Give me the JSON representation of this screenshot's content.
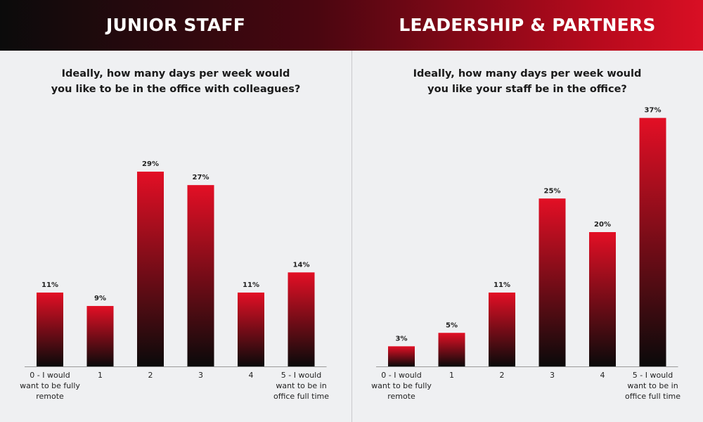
{
  "header": {
    "left_title": "JUNIOR STAFF",
    "right_title": "LEADERSHIP & PARTNERS"
  },
  "colors": {
    "bar_top": "#e30f25",
    "bar_bottom": "#0a0a0a",
    "header_left": "#0b0b0b",
    "header_right": "#d90f24",
    "background": "#eff0f2"
  },
  "chart_data": [
    {
      "type": "bar",
      "title": "Ideally, how many days per week would you like to be in the office with colleagues?",
      "title_lines": [
        "Ideally, how many days per week would",
        "you like to be in the office with colleagues?"
      ],
      "categories": [
        "0 - I would want to be fully remote",
        "1",
        "2",
        "3",
        "4",
        "5 - I would want to be in office full time"
      ],
      "category_lines": [
        [
          "0 - I would",
          "want to be fully",
          "remote"
        ],
        [
          "1"
        ],
        [
          "2"
        ],
        [
          "3"
        ],
        [
          "4"
        ],
        [
          "5 - I would",
          "want to be in",
          "office full time"
        ]
      ],
      "values": [
        11,
        9,
        29,
        27,
        11,
        14
      ],
      "value_labels": [
        "11%",
        "9%",
        "29%",
        "27%",
        "11%",
        "14%"
      ],
      "unit": "%",
      "xlabel": "",
      "ylabel": "",
      "grid": false
    },
    {
      "type": "bar",
      "title": "Ideally, how many days per week would you like your staff be in the office?",
      "title_lines": [
        "Ideally, how many days per week would",
        "you like your staff be in the office?"
      ],
      "categories": [
        "0 - I would want to be fully remote",
        "1",
        "2",
        "3",
        "4",
        "5 - I would want to be in office full time"
      ],
      "category_lines": [
        [
          "0 - I would",
          "want to be fully",
          "remote"
        ],
        [
          "1"
        ],
        [
          "2"
        ],
        [
          "3"
        ],
        [
          "4"
        ],
        [
          "5 - I would",
          "want to be in",
          "office full time"
        ]
      ],
      "values": [
        3,
        5,
        11,
        25,
        20,
        37
      ],
      "value_labels": [
        "3%",
        "5%",
        "11%",
        "25%",
        "20%",
        "37%"
      ],
      "unit": "%",
      "xlabel": "",
      "ylabel": "",
      "grid": false
    }
  ]
}
